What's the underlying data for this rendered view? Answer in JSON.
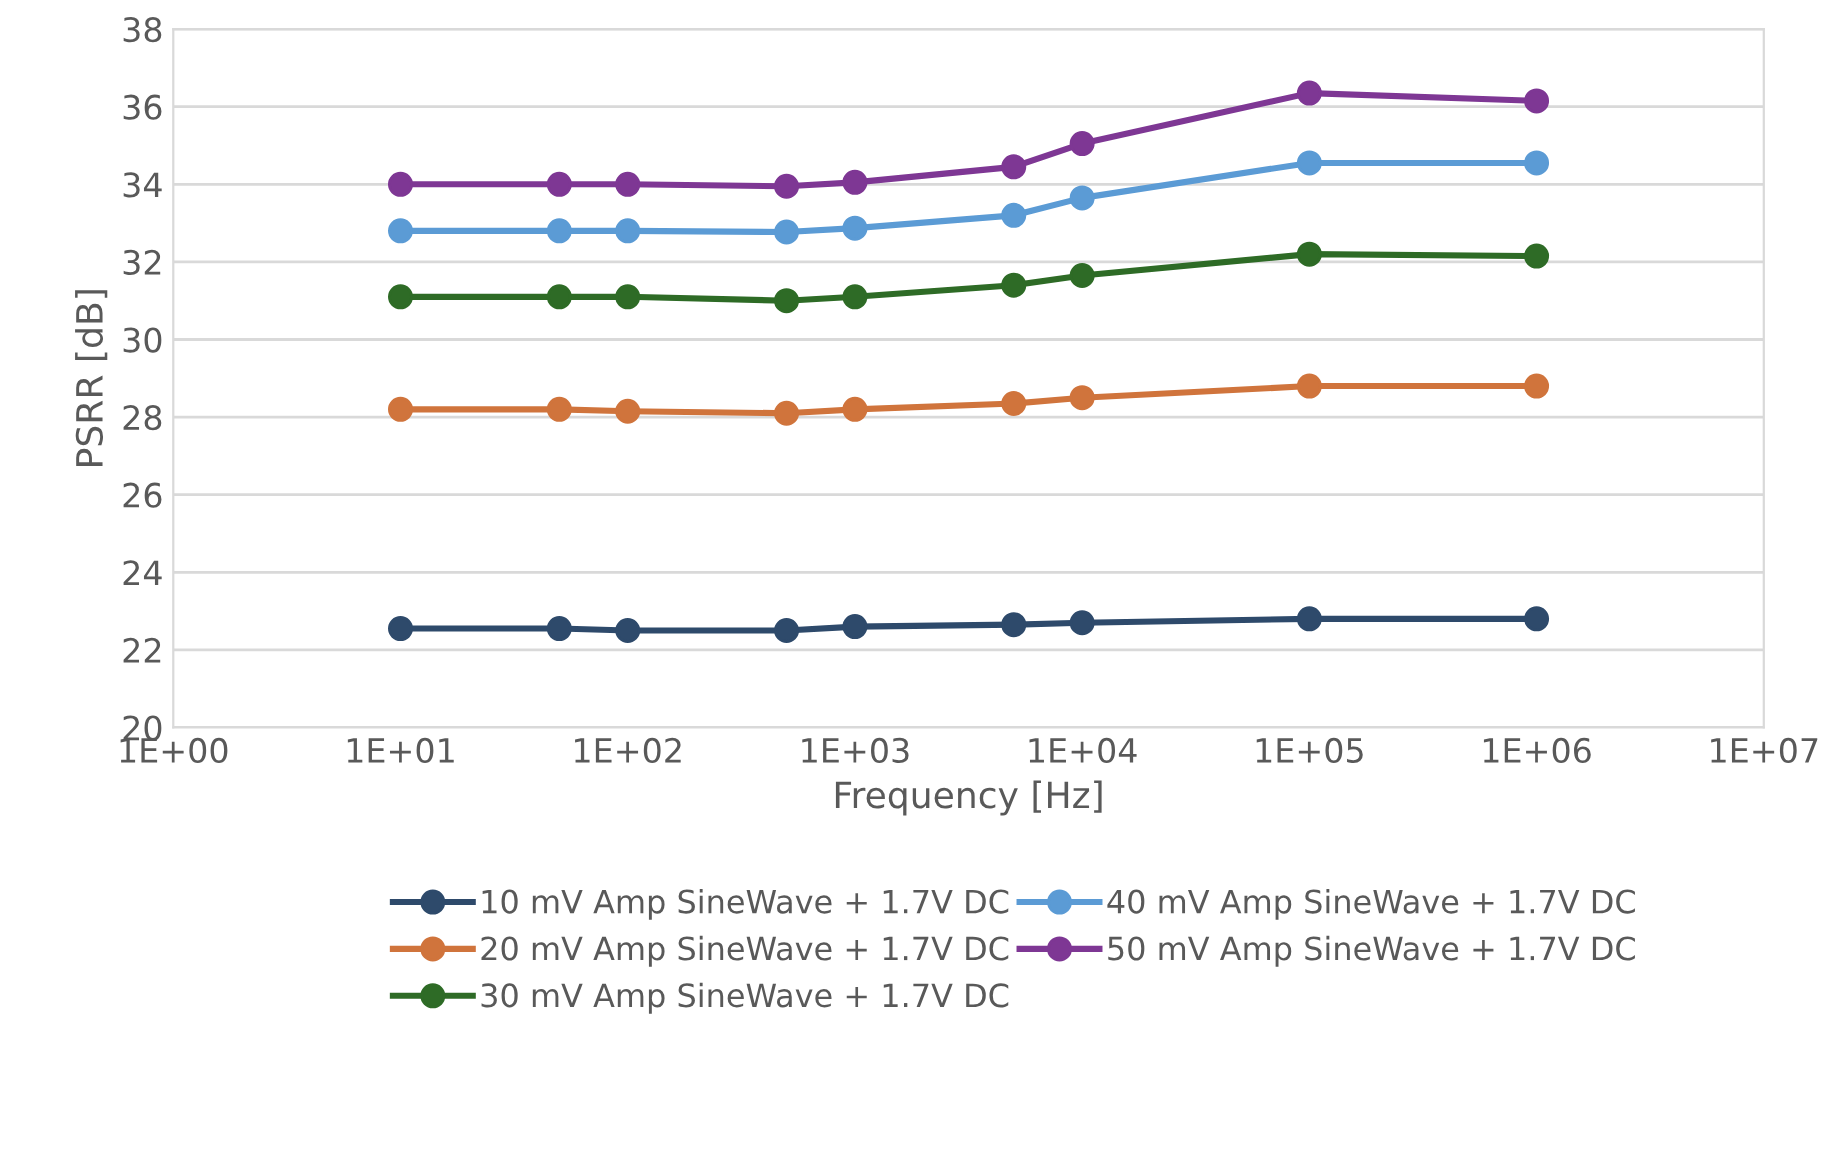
{
  "chart_data": {
    "type": "line",
    "xlabel": "Frequency [Hz]",
    "ylabel": "PSRR [dB]",
    "log": "x",
    "grid": "y",
    "legend": "bottom",
    "marker": "circle",
    "line_style": "solid",
    "x": [
      10,
      50,
      100,
      500,
      1000,
      5000,
      10000,
      100000,
      1000000
    ],
    "xlim": [
      1,
      10000000
    ],
    "xticks": [
      {
        "value": 1,
        "label": "1E+00"
      },
      {
        "value": 10,
        "label": "1E+01"
      },
      {
        "value": 100,
        "label": "1E+02"
      },
      {
        "value": 1000,
        "label": "1E+03"
      },
      {
        "value": 10000,
        "label": "1E+04"
      },
      {
        "value": 100000,
        "label": "1E+05"
      },
      {
        "value": 1000000,
        "label": "1E+06"
      },
      {
        "value": 10000000,
        "label": "1E+07"
      }
    ],
    "ylim": [
      20,
      38
    ],
    "yticks": [
      20,
      22,
      24,
      26,
      28,
      30,
      32,
      34,
      36,
      38
    ],
    "series": [
      {
        "name": "10 mV Amp SineWave + 1.7V DC",
        "color": "#2e4a6b",
        "values": [
          22.55,
          22.55,
          22.5,
          22.5,
          22.6,
          22.65,
          22.7,
          22.8,
          22.8
        ]
      },
      {
        "name": "20 mV Amp SineWave + 1.7V DC",
        "color": "#d0743c",
        "values": [
          28.2,
          28.2,
          28.15,
          28.1,
          28.2,
          28.35,
          28.5,
          28.8,
          28.8
        ]
      },
      {
        "name": "30 mV Amp SineWave + 1.7V DC",
        "color": "#2e6b26",
        "values": [
          31.1,
          31.1,
          31.1,
          31.0,
          31.1,
          31.4,
          31.65,
          32.2,
          32.15
        ]
      },
      {
        "name": "40 mV Amp SineWave + 1.7V DC",
        "color": "#5b9bd5",
        "values": [
          32.8,
          32.8,
          32.8,
          32.77,
          32.87,
          33.2,
          33.65,
          34.55,
          34.55
        ]
      },
      {
        "name": "50 mV Amp SineWave + 1.7V DC",
        "color": "#7e3794",
        "values": [
          34.0,
          34.0,
          34.0,
          33.95,
          34.05,
          34.45,
          35.05,
          36.35,
          36.15
        ]
      }
    ]
  }
}
